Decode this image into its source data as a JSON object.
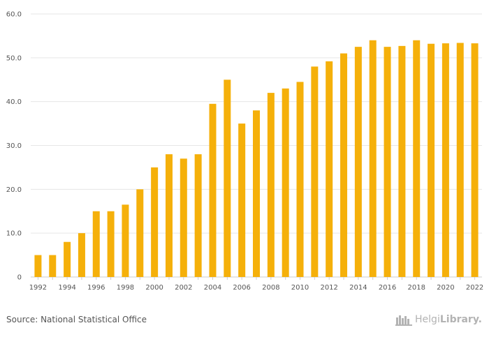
{
  "chart_data": {
    "type": "bar",
    "categories": [
      "1992",
      "1993",
      "1994",
      "1995",
      "1996",
      "1997",
      "1998",
      "1999",
      "2000",
      "2001",
      "2002",
      "2003",
      "2004",
      "2005",
      "2006",
      "2007",
      "2008",
      "2009",
      "2010",
      "2011",
      "2012",
      "2013",
      "2014",
      "2015",
      "2016",
      "2017",
      "2018",
      "2019",
      "2020",
      "2021",
      "2022"
    ],
    "values": [
      5.0,
      5.0,
      8.0,
      10.0,
      15.0,
      15.0,
      16.5,
      20.0,
      25.0,
      28.0,
      27.0,
      28.0,
      39.5,
      45.0,
      35.0,
      38.0,
      42.0,
      43.0,
      44.5,
      48.0,
      49.2,
      51.0,
      52.5,
      54.0,
      52.5,
      52.7,
      54.0,
      53.2,
      53.3,
      53.4,
      53.3
    ],
    "x_tick_labels": [
      "1992",
      "1994",
      "1996",
      "1998",
      "2000",
      "2002",
      "2004",
      "2006",
      "2008",
      "2010",
      "2012",
      "2014",
      "2016",
      "2018",
      "2020",
      "2022"
    ],
    "y_tick_labels": [
      "0",
      "10.0",
      "20.0",
      "30.0",
      "40.0",
      "50.0",
      "60.0"
    ],
    "ylim": [
      0,
      60
    ],
    "grid": true,
    "bar_color": "#f5b00a",
    "title": "",
    "xlabel": "",
    "ylabel": ""
  },
  "footer": {
    "source": "Source: National Statistical Office",
    "brand_light": "Helgi",
    "brand_bold": "Library."
  },
  "colors": {
    "grid": "#e6e6e6",
    "axis": "#cccccc",
    "text": "#555555",
    "brand": "#b3b3b3"
  }
}
